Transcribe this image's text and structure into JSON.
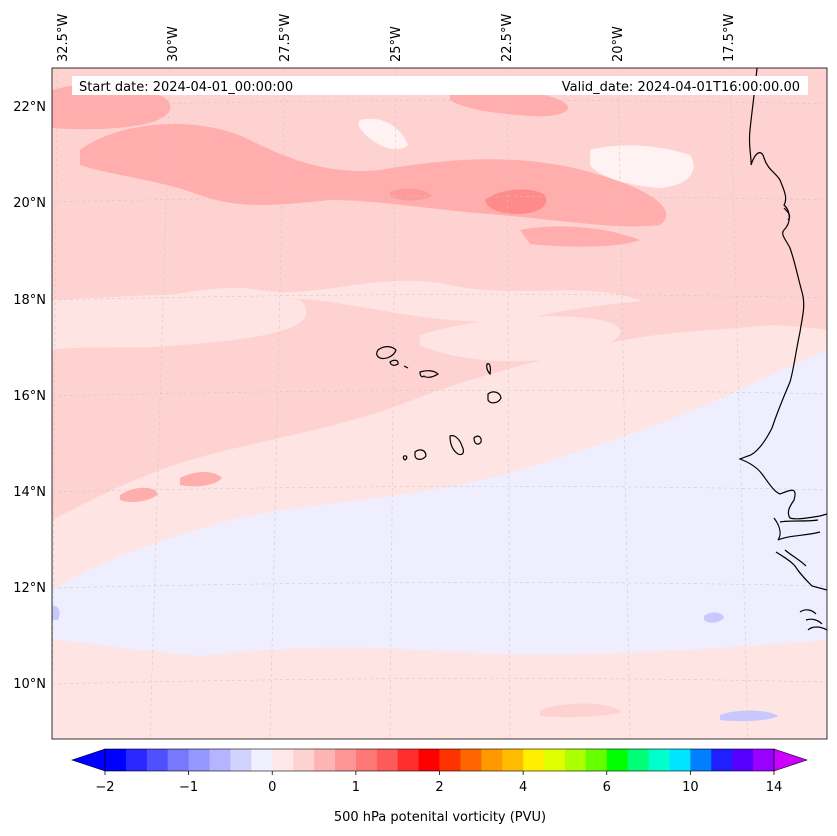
{
  "header": {
    "start_date": "Start date: 2024-04-01_00:00:00",
    "valid_date": "Valid_date: 2024-04-01T16:00:00.00"
  },
  "map": {
    "lon_labels": [
      "32.5°W",
      "30°W",
      "27.5°W",
      "25°W",
      "22.5°W",
      "20°W",
      "17.5°W"
    ],
    "lat_labels": [
      "22°N",
      "20°N",
      "18°N",
      "16°N",
      "14°N",
      "12°N",
      "10°N"
    ],
    "gridlines": true
  },
  "colorbar": {
    "label": "500 hPa potenital vorticity (PVU)",
    "tick_labels": [
      "−2",
      "−1",
      "0",
      "1",
      "2",
      "4",
      "6",
      "10",
      "14"
    ],
    "extend": "both",
    "colors": [
      "#0000ff",
      "#2828ff",
      "#5050ff",
      "#7878ff",
      "#9696ff",
      "#b4b4ff",
      "#d2d2ff",
      "#f0f0ff",
      "#ffe8e8",
      "#ffd2d2",
      "#ffb4b4",
      "#ff9696",
      "#ff7878",
      "#ff5a5a",
      "#ff2d2d",
      "#ff0000",
      "#ff3300",
      "#ff6600",
      "#ff9900",
      "#ffbb00",
      "#ffee00",
      "#dfff00",
      "#aaff00",
      "#66ff00",
      "#00ff00",
      "#00ff77",
      "#00ffcc",
      "#00e5ff",
      "#0080ff",
      "#2020ff",
      "#5500ff",
      "#9900ff"
    ],
    "under_color": "#0000ff",
    "over_color": "#cc00ff"
  },
  "colors": {
    "background": "#ffe4e4",
    "pink_light": "#ffd2d2",
    "pink_mid": "#ffadad",
    "pink_strong": "#ff8a8a",
    "lavender": "#eeeeff",
    "blue_patch": "#c8c8ff",
    "white_patch": "#fff2f2",
    "coast": "#000000"
  }
}
